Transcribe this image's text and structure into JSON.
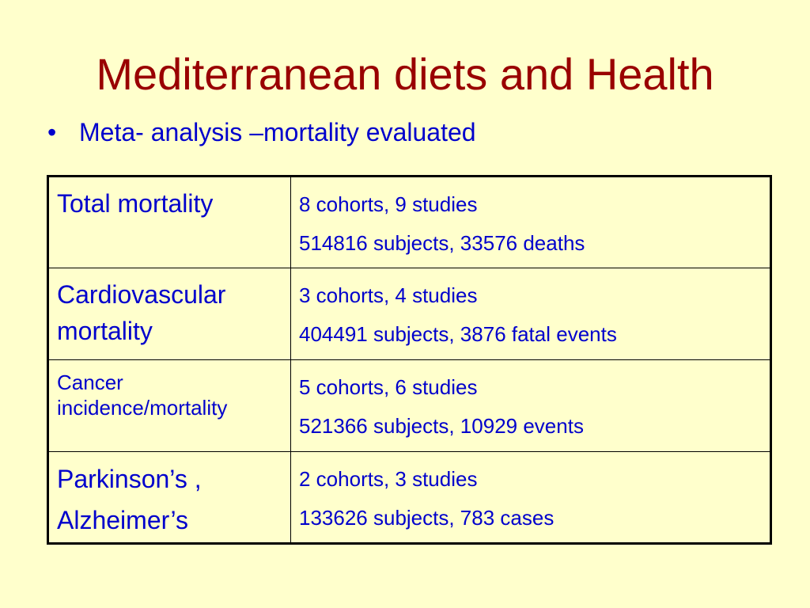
{
  "slide": {
    "title": "Mediterranean diets and Health",
    "bullet_symbol": "•",
    "bullet": "Meta- analysis –mortality evaluated"
  },
  "table": {
    "rows": [
      {
        "label": "Total mortality",
        "line1": "8 cohorts, 9 studies",
        "line2": "514816 subjects, 33576 deaths"
      },
      {
        "label": "Cardiovascular mortality",
        "line1": "3 cohorts, 4 studies",
        "line2": "404491 subjects, 3876 fatal events"
      },
      {
        "label": "Cancer incidence/mortality",
        "line1": "5 cohorts, 6 studies",
        "line2": "521366 subjects, 10929 events"
      },
      {
        "label_line1": "Parkinson’s ,",
        "label_line2": "Alzheimer’s",
        "line1": "2 cohorts, 3 studies",
        "line2": "133626 subjects, 783 cases"
      }
    ]
  },
  "colors": {
    "background": "#ffffcc",
    "title": "#990000",
    "text": "#0000cc",
    "border": "#000000"
  }
}
